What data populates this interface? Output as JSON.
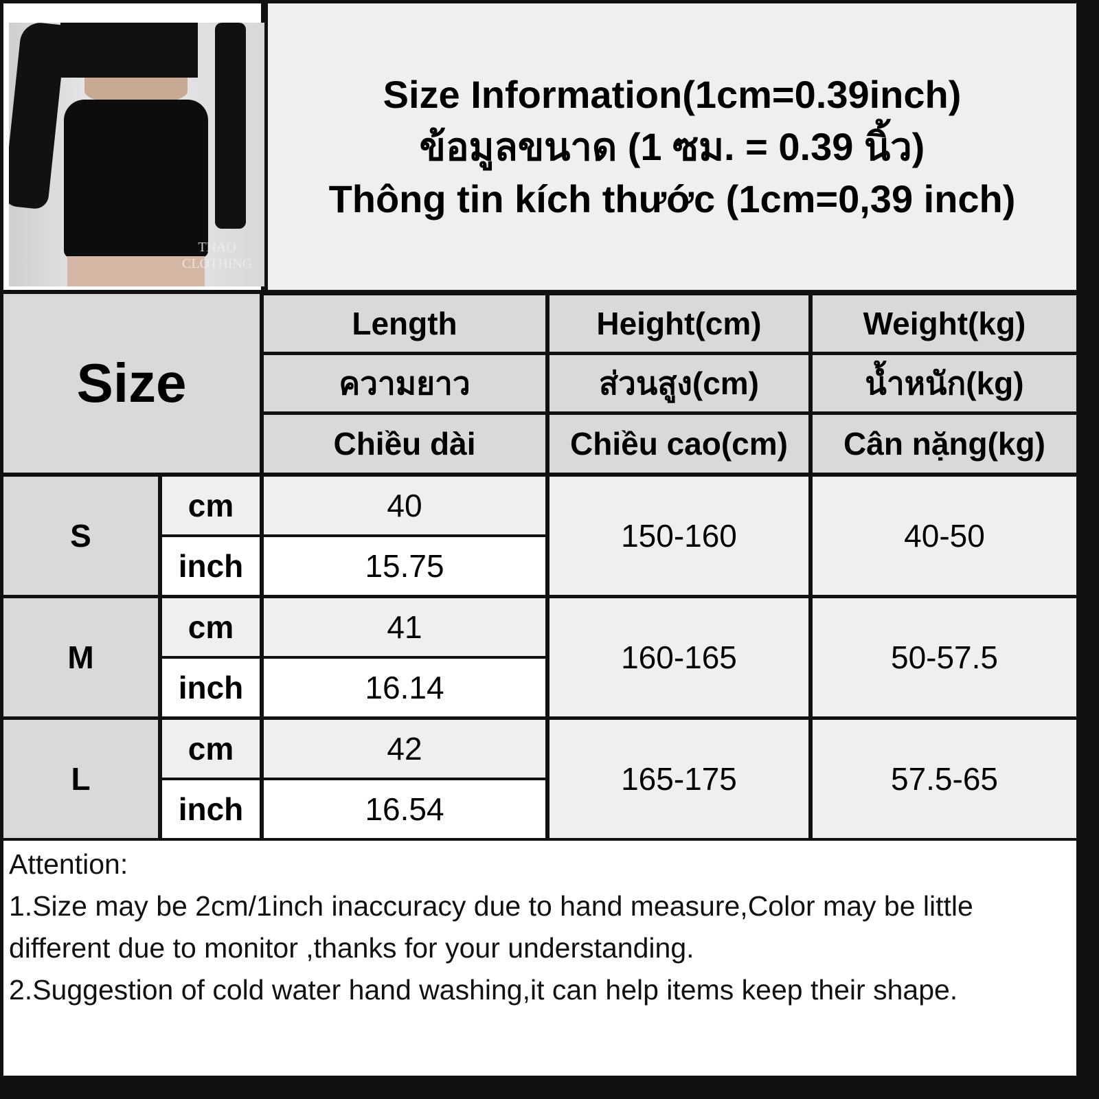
{
  "header": {
    "title_lines": [
      "Size Information(1cm=0.39inch)",
      "ข้อมูลขนาด (1 ซม. = 0.39 นิ้ว)",
      "Thông tin kích thước (1cm=0,39 inch)"
    ],
    "photo_watermark": "THAO CLOTHING"
  },
  "table": {
    "size_header": "Size",
    "columns": [
      {
        "en": "Length",
        "th": "ความยาว",
        "vi": "Chiều dài"
      },
      {
        "en": "Height(cm)",
        "th": "ส่วนสูง(cm)",
        "vi": "Chiều cao(cm)"
      },
      {
        "en": "Weight(kg)",
        "th": "น้ำหนัก(kg)",
        "vi": "Cân nặng(kg)"
      }
    ],
    "rows": [
      {
        "size": "S",
        "unit_cm": "cm",
        "unit_inch": "inch",
        "length_cm": "40",
        "length_inch": "15.75",
        "height": "150-160",
        "weight": "40-50"
      },
      {
        "size": "M",
        "unit_cm": "cm",
        "unit_inch": "inch",
        "length_cm": "41",
        "length_inch": "16.14",
        "height": "160-165",
        "weight": "50-57.5"
      },
      {
        "size": "L",
        "unit_cm": "cm",
        "unit_inch": "inch",
        "length_cm": "42",
        "length_inch": "16.54",
        "height": "165-175",
        "weight": "57.5-65"
      }
    ]
  },
  "attention": {
    "title": "Attention:",
    "lines": [
      "1.Size may be 2cm/1inch inaccuracy due to hand measure,Color may be little different due to monitor ,thanks for your understanding.",
      "2.Suggestion of cold water hand washing,it can help items keep their shape."
    ]
  }
}
